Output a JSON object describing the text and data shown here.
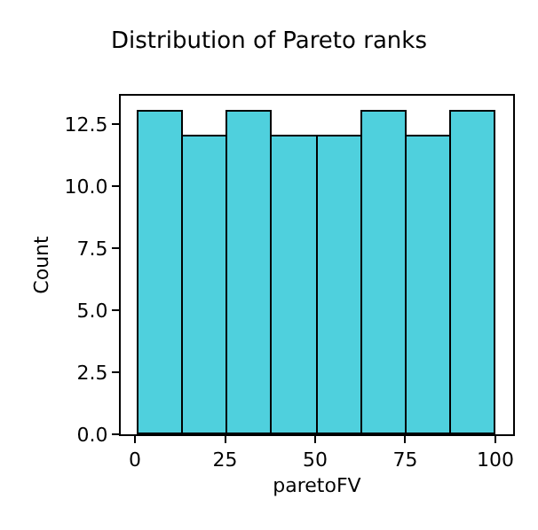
{
  "chart_data": {
    "type": "histogram",
    "title": "Distribution of Pareto ranks",
    "xlabel": "paretoFV",
    "ylabel": "Count",
    "bins": [
      1,
      13.375,
      25.75,
      38.125,
      50.5,
      62.875,
      75.25,
      87.625,
      100
    ],
    "values": [
      13,
      12,
      13,
      12,
      12,
      13,
      12,
      13
    ],
    "color": "#4fd0dd",
    "xlim": [
      -3.95,
      104.95
    ],
    "xticks": [
      0,
      25,
      50,
      75,
      100
    ],
    "ylim": [
      0,
      13.65
    ],
    "yticks": [
      {
        "value": 0,
        "label": "0.0"
      },
      {
        "value": 2.5,
        "label": "2.5"
      },
      {
        "value": 5,
        "label": "5.0"
      },
      {
        "value": 7.5,
        "label": "7.5"
      },
      {
        "value": 10,
        "label": "10.0"
      },
      {
        "value": 12.5,
        "label": "12.5"
      }
    ],
    "relative": false
  }
}
